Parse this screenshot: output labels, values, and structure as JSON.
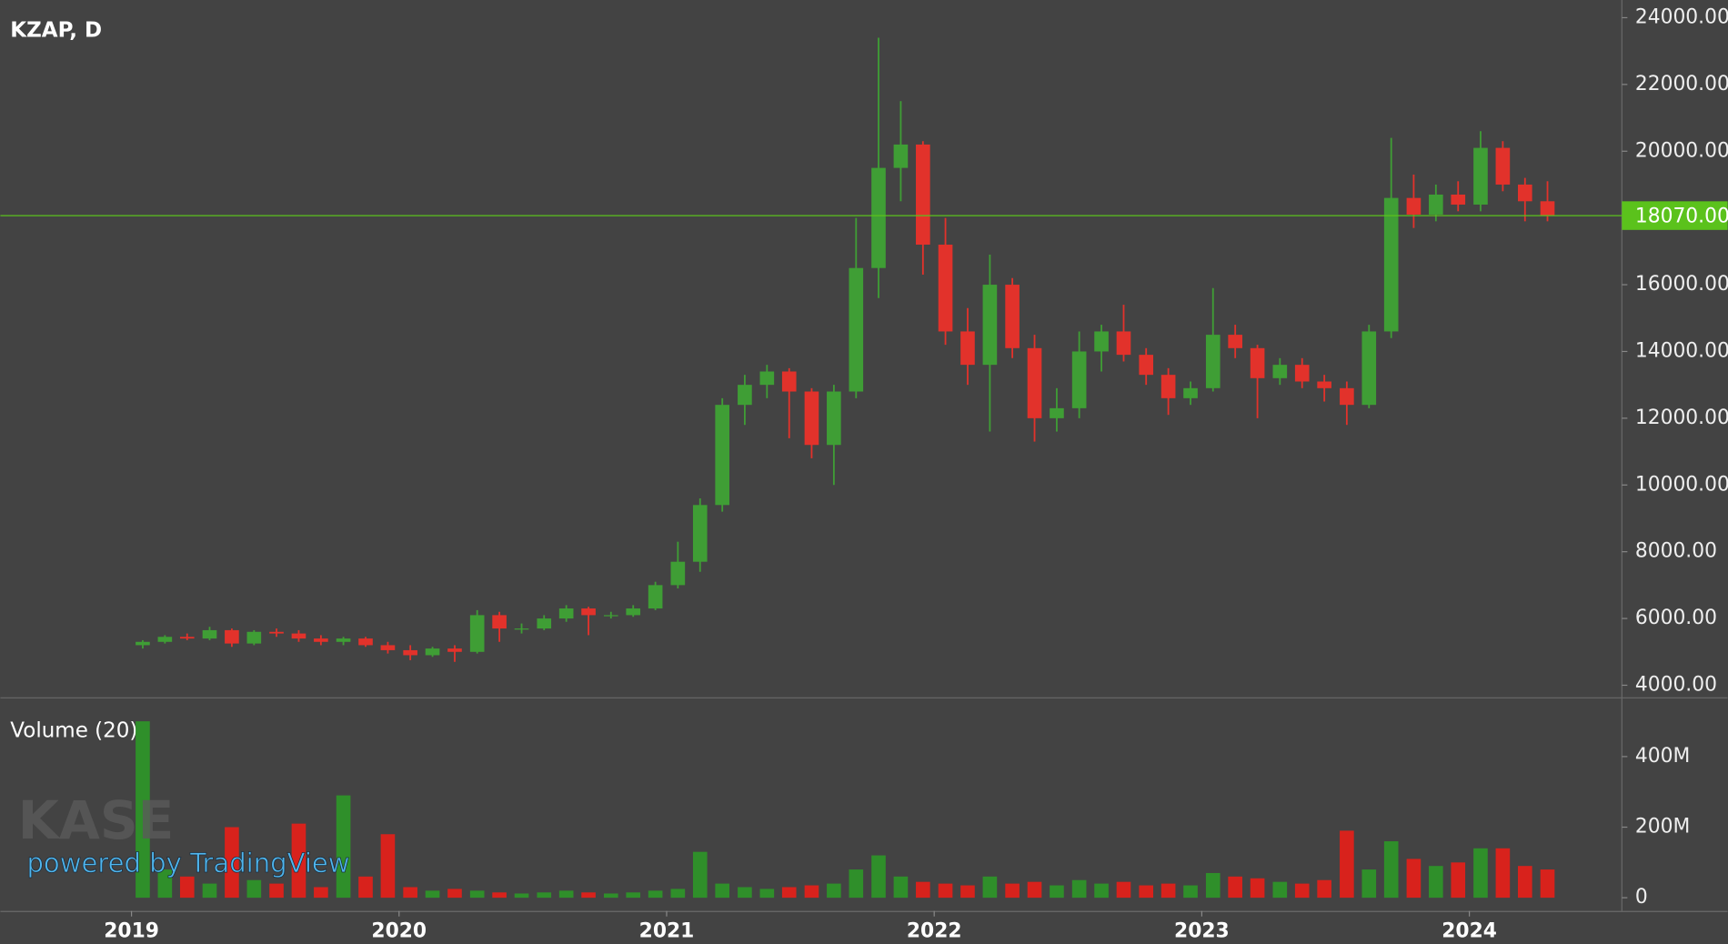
{
  "chart_data": [
    {
      "type": "candlestick",
      "title": "KZAP, D",
      "x": [
        2019.042,
        2019.125,
        2019.208,
        2019.292,
        2019.375,
        2019.458,
        2019.542,
        2019.625,
        2019.708,
        2019.792,
        2019.875,
        2019.958,
        2020.042,
        2020.125,
        2020.208,
        2020.292,
        2020.375,
        2020.458,
        2020.542,
        2020.625,
        2020.708,
        2020.792,
        2020.875,
        2020.958,
        2021.042,
        2021.125,
        2021.208,
        2021.292,
        2021.375,
        2021.458,
        2021.542,
        2021.625,
        2021.708,
        2021.792,
        2021.875,
        2021.958,
        2022.042,
        2022.125,
        2022.208,
        2022.292,
        2022.375,
        2022.458,
        2022.542,
        2022.625,
        2022.708,
        2022.792,
        2022.875,
        2022.958,
        2023.042,
        2023.125,
        2023.208,
        2023.292,
        2023.375,
        2023.458,
        2023.542,
        2023.625,
        2023.708,
        2023.792,
        2023.875,
        2023.958,
        2024.042,
        2024.125,
        2024.208,
        2024.292
      ],
      "open": [
        5200,
        5300,
        5450,
        5400,
        5650,
        5250,
        5600,
        5550,
        5400,
        5300,
        5400,
        5200,
        5050,
        4900,
        5100,
        5000,
        6100,
        5700,
        5700,
        6000,
        6300,
        6100,
        6100,
        6300,
        7000,
        7700,
        9400,
        12400,
        13000,
        13400,
        12800,
        11200,
        12800,
        16500,
        19500,
        20200,
        17200,
        14600,
        13600,
        16000,
        14100,
        12000,
        12300,
        14000,
        14600,
        13900,
        13300,
        12600,
        12900,
        14500,
        14100,
        13200,
        13600,
        13100,
        12900,
        12400,
        14600,
        18600,
        18100,
        18700,
        18400,
        20100,
        19000,
        18500
      ],
      "high": [
        5350,
        5500,
        5550,
        5750,
        5700,
        5650,
        5700,
        5650,
        5500,
        5450,
        5450,
        5300,
        5200,
        5150,
        5200,
        6250,
        6200,
        5850,
        6100,
        6400,
        6350,
        6200,
        6400,
        7100,
        8300,
        9600,
        12600,
        13300,
        13600,
        13500,
        12900,
        13000,
        18000,
        23400,
        21500,
        20300,
        18000,
        15300,
        16900,
        16200,
        14500,
        12900,
        14600,
        14800,
        15400,
        14100,
        13500,
        13100,
        15900,
        14800,
        14200,
        13800,
        13800,
        13300,
        13100,
        14800,
        20400,
        19300,
        19000,
        19100,
        20600,
        20300,
        19200,
        19100
      ],
      "low": [
        5100,
        5250,
        5350,
        5350,
        5150,
        5200,
        5450,
        5300,
        5200,
        5200,
        5150,
        4950,
        4750,
        4850,
        4700,
        4950,
        5300,
        5550,
        5650,
        5900,
        5500,
        6000,
        6050,
        6250,
        6900,
        7400,
        9200,
        11800,
        12600,
        11400,
        10800,
        10000,
        12600,
        15600,
        18500,
        16300,
        14200,
        13000,
        11600,
        13800,
        11300,
        11600,
        12000,
        13400,
        13700,
        13000,
        12100,
        12400,
        12800,
        13800,
        12000,
        13000,
        12900,
        12500,
        11800,
        12300,
        14400,
        17700,
        17900,
        18200,
        18200,
        18800,
        17900,
        17900
      ],
      "close": [
        5300,
        5450,
        5400,
        5650,
        5250,
        5600,
        5550,
        5400,
        5300,
        5400,
        5200,
        5050,
        4900,
        5100,
        5000,
        6100,
        5700,
        5700,
        6000,
        6300,
        6100,
        6100,
        6300,
        7000,
        7700,
        9400,
        12400,
        13000,
        13400,
        12800,
        11200,
        12800,
        16500,
        19500,
        20200,
        17200,
        14600,
        13600,
        16000,
        14100,
        12000,
        12300,
        14000,
        14600,
        13900,
        13300,
        12600,
        12900,
        14500,
        14100,
        13200,
        13600,
        13100,
        12900,
        12400,
        14600,
        18600,
        18100,
        18700,
        18400,
        20100,
        19000,
        18500,
        18070
      ],
      "up_color": "#3f9e35",
      "down_color": "#e2322b",
      "xlim": [
        2018.51,
        2024.57
      ],
      "xticks": [
        2019,
        2020,
        2021,
        2022,
        2023,
        2024
      ],
      "ylim": [
        3640,
        24530
      ],
      "yticks": [
        {
          "value": 4000,
          "label": "4000.00"
        },
        {
          "value": 6000,
          "label": "6000.00"
        },
        {
          "value": 8000,
          "label": "8000.00"
        },
        {
          "value": 10000,
          "label": "10000.00"
        },
        {
          "value": 12000,
          "label": "12000.00"
        },
        {
          "value": 14000,
          "label": "14000.00"
        },
        {
          "value": 16000,
          "label": "16000.00"
        },
        {
          "value": 18000,
          "label": "18000.00"
        },
        {
          "value": 20000,
          "label": "20000.00"
        },
        {
          "value": 22000,
          "label": "22000.00"
        },
        {
          "value": 24000,
          "label": "24000.00"
        }
      ],
      "last_value": 18070,
      "last_value_label": "18070.00",
      "last_color": "#5bc21c"
    },
    {
      "type": "volume",
      "title": "Volume (20)",
      "values": [
        500000000,
        80000000,
        60000000,
        40000000,
        200000000,
        50000000,
        40000000,
        210000000,
        30000000,
        290000000,
        60000000,
        180000000,
        30000000,
        20000000,
        25000000,
        20000000,
        15000000,
        12000000,
        15000000,
        20000000,
        15000000,
        12000000,
        15000000,
        20000000,
        25000000,
        130000000,
        40000000,
        30000000,
        25000000,
        30000000,
        35000000,
        40000000,
        80000000,
        120000000,
        60000000,
        45000000,
        40000000,
        35000000,
        60000000,
        40000000,
        45000000,
        35000000,
        50000000,
        40000000,
        45000000,
        35000000,
        40000000,
        35000000,
        70000000,
        60000000,
        55000000,
        45000000,
        40000000,
        50000000,
        190000000,
        80000000,
        160000000,
        110000000,
        90000000,
        100000000,
        140000000,
        140000000,
        90000000,
        80000000
      ],
      "up_color": "#2f8f2a",
      "down_color": "#d8221c",
      "ylim": [
        -37500000,
        565000000
      ],
      "yticks": [
        0,
        {
          "value": 200000000,
          "label": "200M"
        },
        {
          "value": 400000000,
          "label": "400M"
        }
      ]
    }
  ],
  "watermark": {
    "logo": "KASE",
    "text": "powered by TradingView"
  }
}
